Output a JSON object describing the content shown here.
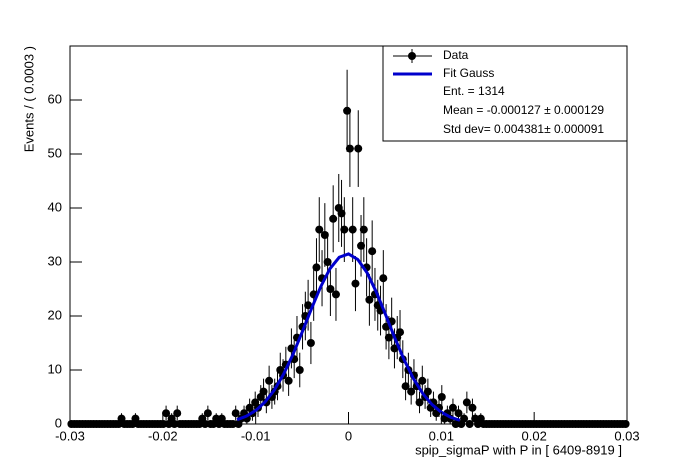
{
  "chart_data": {
    "type": "histogram",
    "ylabel": "Events / ( 0.0003 )",
    "xlabel": "spip_sigmaP with P in [ 6409-8919 ]",
    "xlim": [
      -0.03,
      0.03
    ],
    "xticks": [
      -0.03,
      -0.02,
      -0.01,
      0,
      0.01,
      0.02,
      0.03
    ],
    "ylim": [
      0,
      70
    ],
    "yticks": [
      0,
      10,
      20,
      30,
      40,
      50,
      60
    ],
    "stats": [
      "Ent. = 1314",
      "Mean = -0.000127 ± 0.000129",
      "Std dev= 0.004381± 0.000091"
    ],
    "series": [
      {
        "name": "Data",
        "style": "markers",
        "color": "#000000",
        "x": [
          -0.02985,
          -0.02955,
          -0.02925,
          -0.02895,
          -0.02865,
          -0.02835,
          -0.02805,
          -0.02775,
          -0.02745,
          -0.02715,
          -0.02685,
          -0.02655,
          -0.02625,
          -0.02595,
          -0.02565,
          -0.02535,
          -0.02505,
          -0.02475,
          -0.02445,
          -0.02415,
          -0.02385,
          -0.02355,
          -0.02325,
          -0.02295,
          -0.02265,
          -0.02235,
          -0.02205,
          -0.02175,
          -0.02145,
          -0.02115,
          -0.02085,
          -0.02055,
          -0.02025,
          -0.01995,
          -0.01965,
          -0.01935,
          -0.01905,
          -0.01875,
          -0.01845,
          -0.01815,
          -0.01785,
          -0.01755,
          -0.01725,
          -0.01695,
          -0.01665,
          -0.01635,
          -0.01605,
          -0.01575,
          -0.01545,
          -0.01515,
          -0.01485,
          -0.01455,
          -0.01425,
          -0.01395,
          -0.01365,
          -0.01335,
          -0.01305,
          -0.01275,
          -0.01245,
          -0.01215,
          -0.01185,
          -0.01155,
          -0.01125,
          -0.01095,
          -0.01065,
          -0.01035,
          -0.01005,
          -0.00975,
          -0.00945,
          -0.00915,
          -0.00885,
          -0.00855,
          -0.00825,
          -0.00795,
          -0.00765,
          -0.00735,
          -0.00705,
          -0.00675,
          -0.00645,
          -0.00615,
          -0.00585,
          -0.00555,
          -0.00525,
          -0.00495,
          -0.00465,
          -0.00435,
          -0.00405,
          -0.00375,
          -0.00345,
          -0.00315,
          -0.00285,
          -0.00255,
          -0.00225,
          -0.00195,
          -0.00165,
          -0.00135,
          -0.00105,
          -0.00075,
          -0.00045,
          -0.00015,
          0.00015,
          0.00045,
          0.00075,
          0.00105,
          0.00135,
          0.00165,
          0.00195,
          0.00225,
          0.00255,
          0.00285,
          0.00315,
          0.00345,
          0.00375,
          0.00405,
          0.00435,
          0.00465,
          0.00495,
          0.00525,
          0.00555,
          0.00585,
          0.00615,
          0.00645,
          0.00675,
          0.00705,
          0.00735,
          0.00765,
          0.00795,
          0.00825,
          0.00855,
          0.00885,
          0.00915,
          0.00945,
          0.00975,
          0.01005,
          0.01035,
          0.01065,
          0.01095,
          0.01125,
          0.01155,
          0.01185,
          0.01215,
          0.01245,
          0.01275,
          0.01305,
          0.01335,
          0.01365,
          0.01395,
          0.01425,
          0.01455,
          0.01485,
          0.01515,
          0.01545,
          0.01575,
          0.01605,
          0.01635,
          0.01665,
          0.01695,
          0.01725,
          0.01755,
          0.01785,
          0.01815,
          0.01845,
          0.01875,
          0.01905,
          0.01935,
          0.01965,
          0.01995,
          0.02025,
          0.02055,
          0.02085,
          0.02115,
          0.02145,
          0.02175,
          0.02205,
          0.02235,
          0.02265,
          0.02295,
          0.02325,
          0.02355,
          0.02385,
          0.02415,
          0.02445,
          0.02475,
          0.02505,
          0.02535,
          0.02565,
          0.02595,
          0.02625,
          0.02655,
          0.02685,
          0.02715,
          0.02745,
          0.02775,
          0.02805,
          0.02835,
          0.02865,
          0.02895,
          0.02925,
          0.02955,
          0.02985
        ],
        "values": [
          0,
          0,
          0,
          0,
          0,
          0,
          0,
          0,
          0,
          0,
          0,
          0,
          0,
          0,
          0,
          0,
          0,
          0,
          1,
          0,
          0,
          0,
          0,
          1,
          0,
          0,
          0,
          0,
          0,
          0,
          0,
          0,
          0,
          0,
          2,
          0,
          1,
          0,
          2,
          0,
          0,
          0,
          0,
          0,
          0,
          0,
          0,
          1,
          0,
          2,
          0,
          0,
          1,
          0,
          1,
          0,
          0,
          0,
          0,
          2,
          0,
          1,
          2,
          1,
          3,
          2,
          4,
          3,
          5,
          6,
          4,
          8,
          5,
          6,
          7,
          10,
          9,
          11,
          8,
          14,
          12,
          16,
          10,
          18,
          20,
          22,
          15,
          24,
          29,
          36,
          27,
          35,
          30,
          25,
          38,
          24,
          40,
          39,
          36,
          58,
          51,
          36,
          26,
          51,
          33,
          36,
          29,
          23,
          32,
          24,
          22,
          21,
          27,
          18,
          16,
          19,
          14,
          16,
          17,
          12,
          7,
          10,
          6,
          9,
          7,
          4,
          8,
          5,
          6,
          3,
          4,
          2,
          3,
          5,
          1,
          2,
          1,
          3,
          0,
          2,
          0,
          1,
          4,
          0,
          3,
          1,
          0,
          1,
          0,
          0,
          0,
          0,
          0,
          0,
          0,
          0,
          0,
          0,
          0,
          0,
          0,
          0,
          0,
          0,
          0,
          0,
          0,
          0,
          0,
          0,
          0,
          0,
          0,
          0,
          0,
          0,
          0,
          0,
          0,
          0,
          0,
          0,
          0,
          0,
          0,
          0,
          0,
          0,
          0,
          0,
          0,
          0,
          0,
          0,
          0,
          0,
          0,
          0,
          0,
          0
        ],
        "errors": [
          0,
          0,
          0,
          0,
          0,
          0,
          0,
          0,
          0,
          0,
          0,
          0,
          0,
          0,
          0,
          0,
          0,
          0,
          1,
          0,
          0,
          0,
          0,
          1,
          0,
          0,
          0,
          0,
          0,
          0,
          0,
          0,
          0,
          0,
          1.4,
          0,
          1,
          0,
          1.4,
          0,
          0,
          0,
          0,
          0,
          0,
          0,
          0,
          1,
          0,
          1.4,
          0,
          0,
          1,
          0,
          1,
          0,
          0,
          0,
          0,
          1.4,
          0,
          1,
          1.4,
          1,
          1.7,
          1.4,
          2,
          1.7,
          2.2,
          2.4,
          2,
          2.8,
          2.2,
          2.4,
          2.6,
          3.2,
          3,
          3.3,
          2.8,
          3.7,
          3.5,
          4,
          3.2,
          4.2,
          4.5,
          4.7,
          3.9,
          4.9,
          5.4,
          6,
          5.2,
          5.9,
          5.5,
          5,
          6.2,
          4.9,
          6.3,
          6.2,
          6,
          7.6,
          7.1,
          6,
          5.1,
          7.1,
          5.7,
          6,
          5.4,
          4.8,
          5.7,
          4.9,
          4.7,
          4.6,
          5.2,
          4.2,
          4,
          4.4,
          3.7,
          4,
          4.1,
          3.5,
          2.6,
          3.2,
          2.4,
          3,
          2.6,
          2,
          2.8,
          2.2,
          2.4,
          1.7,
          2,
          1.4,
          1.7,
          2.2,
          1,
          1.4,
          1,
          1.7,
          0,
          1.4,
          0,
          1,
          2,
          0,
          1.7,
          1,
          0,
          1,
          0,
          0,
          0,
          0,
          0,
          0,
          0,
          0,
          0,
          0,
          0,
          0,
          0,
          0,
          0,
          0,
          0,
          0,
          0,
          0,
          0,
          0,
          0,
          0,
          0,
          0,
          0,
          0,
          0,
          0,
          0,
          0,
          0,
          0,
          0,
          0,
          0,
          0,
          0,
          0,
          0,
          0,
          0,
          0,
          0,
          0,
          0,
          0,
          0,
          0,
          0,
          0
        ]
      },
      {
        "name": "Fit Gauss",
        "style": "line",
        "color": "#0000cc",
        "x": [
          -0.012,
          -0.011,
          -0.01,
          -0.009,
          -0.008,
          -0.007,
          -0.006,
          -0.005,
          -0.004,
          -0.003,
          -0.002,
          -0.001,
          0,
          0.001,
          0.002,
          0.003,
          0.004,
          0.005,
          0.006,
          0.007,
          0.008,
          0.009,
          0.01,
          0.011,
          0.012
        ],
        "values": [
          0.8,
          1.45,
          2.49,
          4.05,
          6.27,
          9.2,
          12.82,
          16.97,
          21.31,
          25.4,
          28.75,
          30.88,
          31.49,
          30.47,
          28,
          24.42,
          20.21,
          15.88,
          11.85,
          8.39,
          5.64,
          3.6,
          2.18,
          1.25,
          0.68
        ]
      }
    ]
  }
}
